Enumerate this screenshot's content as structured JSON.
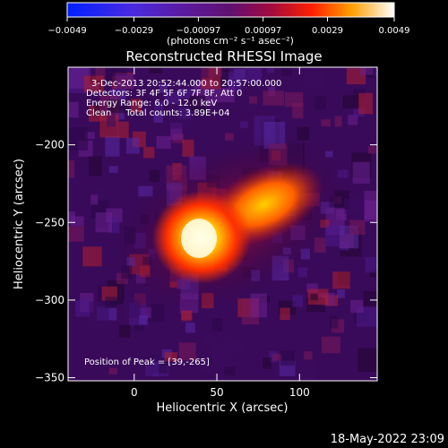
{
  "chart_data": {
    "type": "heatmap",
    "title": "Reconstructed RHESSI Image",
    "xlabel": "Heliocentric X (arcsec)",
    "ylabel": "Heliocentric Y (arcsec)",
    "xlim": [
      -40,
      147
    ],
    "ylim": [
      -352,
      -150
    ],
    "xticks": [
      0,
      50,
      100
    ],
    "xtick_labels": [
      "0",
      "50",
      "100"
    ],
    "yticks": [
      -200,
      -250,
      -300,
      -350
    ],
    "ytick_labels": [
      "−200",
      "−250",
      "−300",
      "−350"
    ],
    "colorbar": {
      "range": [
        -0.0049,
        0.0049
      ],
      "ticks": [
        -0.0049,
        -0.0029,
        -0.00097,
        0.00097,
        0.0029,
        0.0049
      ],
      "tick_labels": [
        "−0.0049",
        "−0.0029",
        "−0.00097",
        "0.00097",
        "0.0029",
        "0.0049"
      ],
      "unit_label": "(photons cm⁻² s⁻¹ asec⁻²)"
    },
    "annotations": [
      "3-Dec-2013 20:52:44.000 to 20:57:00.000",
      "Detectors: 3F 4F 5F 6F 7F 8F, Att 0",
      "Energy Range: 6.0 - 12.0 keV",
      "Clean     Total counts: 3.89E+04",
      "Position of Peak = [39,-265]"
    ],
    "peak": [
      39,
      -265
    ],
    "colors": {
      "negative": "#2040ff",
      "mid": "#6a0a8a",
      "positive": "#ffffff"
    }
  },
  "footer_timestamp": "18-May-2022 23:09"
}
